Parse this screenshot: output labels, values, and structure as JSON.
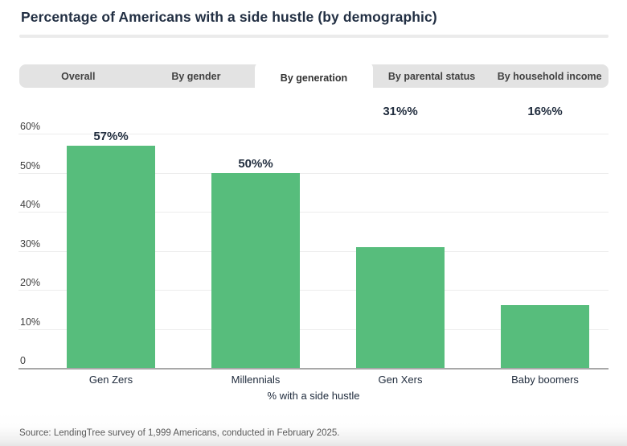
{
  "header": {
    "title": "Percentage of Americans with a side hustle (by demographic)"
  },
  "tabs": [
    {
      "label": "Overall",
      "active": false
    },
    {
      "label": "By gender",
      "active": false
    },
    {
      "label": "By generation",
      "active": true
    },
    {
      "label": "By parental status",
      "active": false
    },
    {
      "label": "By household income",
      "active": false
    }
  ],
  "chart_data": {
    "type": "bar",
    "title": "Percentage of Americans with a side hustle (by demographic)",
    "categories": [
      "Gen Zers",
      "Millennials",
      "Gen Xers",
      "Baby boomers"
    ],
    "values": [
      57,
      50,
      31,
      16
    ],
    "value_labels": [
      "57%%",
      "50%%",
      "31%%",
      "16%%"
    ],
    "value_label_pinned_top": [
      false,
      false,
      true,
      true
    ],
    "xlabel": "% with a side hustle",
    "ylabel": "",
    "ylim": [
      0,
      60
    ],
    "y_tick_labels": [
      "60%",
      "50%",
      "40%",
      "30%",
      "20%",
      "10%",
      "0"
    ],
    "y_tick_values": [
      60,
      50,
      40,
      30,
      20,
      10,
      0
    ],
    "grid": true,
    "legend": false,
    "bar_color": "#57bd7c"
  },
  "colors": {
    "accent_green": "#57bd7c",
    "title_text": "#222f43",
    "tab_bar_bg": "#e3e3e3",
    "active_tab_bg": "#ffffff",
    "gridline": "#ededed",
    "axis_line": "#a8a8a8"
  },
  "footer": {
    "source": "Source: LendingTree survey of 1,999 Americans, conducted in February 2025."
  }
}
